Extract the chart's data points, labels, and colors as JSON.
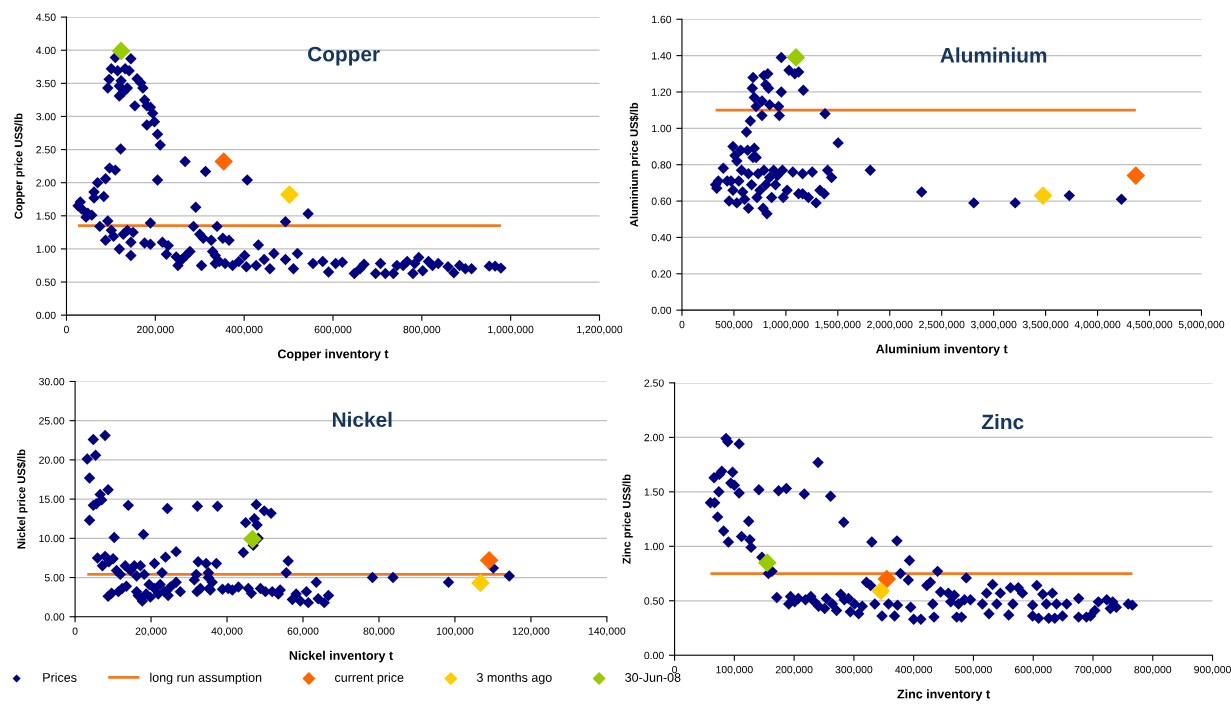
{
  "chart_data": [
    {
      "type": "scatter",
      "title": "Copper",
      "xlabel": "Copper inventory t",
      "ylabel": "Copper price US$/lb",
      "marker": "diamond",
      "grid": "y",
      "legend": false,
      "xlim": [
        0,
        1200000
      ],
      "xticks": [
        0,
        {
          "value": 200000,
          "label": "200,000"
        },
        {
          "value": 400000,
          "label": "400,000"
        },
        {
          "value": 600000,
          "label": "600,000"
        },
        {
          "value": 800000,
          "label": "800,000"
        },
        {
          "value": 1000000,
          "label": "1,000,000"
        },
        {
          "value": 1200000,
          "label": "1,200,000"
        }
      ],
      "ylim": [
        0,
        4.5
      ],
      "yticks": [
        {
          "value": 0,
          "label": "0.00"
        },
        {
          "value": 0.5,
          "label": "0.50"
        },
        {
          "value": 1,
          "label": "1.00"
        },
        {
          "value": 1.5,
          "label": "1.50"
        },
        {
          "value": 2,
          "label": "2.00"
        },
        {
          "value": 2.5,
          "label": "2.50"
        },
        {
          "value": 3,
          "label": "3.00"
        },
        {
          "value": 3.5,
          "label": "3.50"
        },
        {
          "value": 4,
          "label": "4.00"
        },
        {
          "value": 4.5,
          "label": "4.50"
        }
      ],
      "series": [
        {
          "color": "#000080",
          "x": [
            26000,
            31000,
            35000,
            44000,
            48000,
            57000,
            62000,
            62000,
            70000,
            84000,
            88000,
            97000,
            110000,
            93000,
            96000,
            101000,
            110000,
            115000,
            119000,
            123000,
            119000,
            128000,
            132000,
            141000,
            137000,
            145000,
            154000,
            159000,
            167000,
            172000,
            176000,
            181000,
            189000,
            194000,
            198000,
            181000,
            205000,
            211000,
            205000,
            122000,
            75000,
            93000,
            101000,
            88000,
            106000,
            119000,
            128000,
            137000,
            145000,
            150000,
            145000,
            176000,
            189000,
            189000,
            216000,
            229000,
            225000,
            247000,
            251000,
            260000,
            269000,
            278000,
            267000,
            286000,
            291000,
            300000,
            304000,
            308000,
            313000,
            326000,
            329000,
            335000,
            339000,
            335000,
            344000,
            352000,
            366000,
            357000,
            374000,
            388000,
            401000,
            405000,
            407000,
            427000,
            432000,
            445000,
            458000,
            467000,
            493000,
            493000,
            511000,
            520000,
            544000,
            555000,
            577000,
            590000,
            606000,
            621000,
            648000,
            661000,
            670000,
            696000,
            707000,
            718000,
            736000,
            744000,
            758000,
            767000,
            780000,
            784000,
            793000,
            802000,
            815000,
            824000,
            837000,
            859000,
            872000,
            885000,
            898000,
            912000,
            952000,
            965000,
            978000
          ],
          "values": [
            1.65,
            1.71,
            1.6,
            1.48,
            1.54,
            1.51,
            1.86,
            1.77,
            2.0,
            1.79,
            2.06,
            2.22,
            2.19,
            3.43,
            3.56,
            3.72,
            3.89,
            3.69,
            3.46,
            3.54,
            3.31,
            3.37,
            3.72,
            3.69,
            3.43,
            3.87,
            3.16,
            3.57,
            3.51,
            3.43,
            3.25,
            3.16,
            3.14,
            3.05,
            2.92,
            2.87,
            2.73,
            2.57,
            2.04,
            2.51,
            1.34,
            1.42,
            1.28,
            1.13,
            1.19,
            1.0,
            1.22,
            1.28,
            1.1,
            1.25,
            0.9,
            1.09,
            1.07,
            1.39,
            1.1,
            1.05,
            0.92,
            0.88,
            0.75,
            0.84,
            0.9,
            0.96,
            2.32,
            1.34,
            1.63,
            1.22,
            0.75,
            1.16,
            2.17,
            1.13,
            0.96,
            0.9,
            1.34,
            0.78,
            0.81,
            1.16,
            1.13,
            0.78,
            0.75,
            0.81,
            0.9,
            0.73,
            2.04,
            0.75,
            1.06,
            0.84,
            0.7,
            0.93,
            0.84,
            1.41,
            0.7,
            0.93,
            1.53,
            0.78,
            0.81,
            0.65,
            0.78,
            0.8,
            0.63,
            0.7,
            0.77,
            0.63,
            0.78,
            0.63,
            0.63,
            0.75,
            0.75,
            0.81,
            0.63,
            0.78,
            0.87,
            0.67,
            0.81,
            0.75,
            0.78,
            0.73,
            0.64,
            0.75,
            0.7,
            0.7,
            0.74,
            0.74,
            0.71
          ]
        },
        {
          "type": "line",
          "marker": "none",
          "line_style": "solid",
          "color": "#f47a20",
          "x": [
            26000,
            978000
          ],
          "values": [
            1.35,
            1.35
          ]
        },
        {
          "color": "#ff6600",
          "x": [
            354000
          ],
          "values": [
            2.32
          ]
        },
        {
          "color": "#ffcc00",
          "x": [
            502000
          ],
          "values": [
            1.82
          ]
        },
        {
          "color": "#99cc00",
          "x": [
            123000
          ],
          "values": [
            3.99
          ]
        }
      ]
    },
    {
      "type": "scatter",
      "title": "Aluminium",
      "xlabel": "Aluminium inventory t",
      "ylabel": "Aluminium price US$/lb",
      "marker": "diamond",
      "grid": "y",
      "legend": false,
      "xlim": [
        0,
        5000000
      ],
      "xticks": [
        0,
        {
          "value": 500000,
          "label": "500,000"
        },
        {
          "value": 1000000,
          "label": "1,000,000"
        },
        {
          "value": 1500000,
          "label": "1,500,000"
        },
        {
          "value": 2000000,
          "label": "2,000,000"
        },
        {
          "value": 2500000,
          "label": "2,500,000"
        },
        {
          "value": 3000000,
          "label": "3,000,000"
        },
        {
          "value": 3500000,
          "label": "3,500,000"
        },
        {
          "value": 4000000,
          "label": "4,000,000"
        },
        {
          "value": 4500000,
          "label": "4,500,000"
        },
        {
          "value": 5000000,
          "label": "5,000,000"
        }
      ],
      "ylim": [
        0,
        1.6
      ],
      "yticks": [
        {
          "value": 0,
          "label": "0.00"
        },
        {
          "value": 0.2,
          "label": "0.20"
        },
        {
          "value": 0.4,
          "label": "0.40"
        },
        {
          "value": 0.6,
          "label": "0.60"
        },
        {
          "value": 0.8,
          "label": "0.80"
        },
        {
          "value": 1,
          "label": "1.00"
        },
        {
          "value": 1.2,
          "label": "1.20"
        },
        {
          "value": 1.4,
          "label": "1.40"
        },
        {
          "value": 1.6,
          "label": "1.60"
        }
      ],
      "series": [
        {
          "color": "#000080",
          "x": [
            324000,
            335000,
            350000,
            398000,
            435000,
            472000,
            454000,
            491000,
            510000,
            528000,
            491000,
            528000,
            547000,
            565000,
            573000,
            584000,
            603000,
            621000,
            632000,
            640000,
            658000,
            640000,
            670000,
            684000,
            696000,
            714000,
            677000,
            684000,
            696000,
            714000,
            722000,
            733000,
            751000,
            770000,
            770000,
            781000,
            789000,
            789000,
            807000,
            807000,
            818000,
            826000,
            833000,
            844000,
            844000,
            863000,
            882000,
            900000,
            919000,
            930000,
            937000,
            956000,
            956000,
            967000,
            975000,
            1012000,
            1030000,
            1067000,
            1086000,
            1123000,
            1123000,
            1161000,
            1168000,
            1161000,
            1217000,
            1254000,
            1291000,
            1328000,
            1369000,
            1377000,
            1402000,
            1440000,
            1503000,
            1812000,
            2307000,
            2809000,
            3207000,
            3728000,
            4230000
          ],
          "values": [
            0.69,
            0.67,
            0.71,
            0.78,
            0.71,
            0.71,
            0.6,
            0.9,
            0.85,
            0.82,
            0.66,
            0.59,
            0.71,
            0.88,
            0.77,
            0.65,
            0.61,
            0.98,
            0.88,
            0.75,
            1.04,
            0.56,
            0.69,
            0.84,
            0.89,
            0.84,
            1.22,
            1.28,
            1.17,
            1.12,
            0.62,
            0.75,
            0.66,
            1.15,
            1.07,
            0.56,
            1.29,
            0.77,
            1.24,
            0.69,
            0.53,
            1.3,
            1.22,
            1.13,
            0.73,
            0.62,
            0.77,
            0.69,
            0.74,
            1.12,
            1.07,
            1.39,
            1.2,
            0.77,
            0.62,
            0.66,
            1.32,
            0.76,
            1.3,
            1.31,
            0.64,
            0.64,
            1.21,
            0.75,
            0.62,
            0.76,
            0.59,
            0.66,
            0.64,
            1.08,
            0.77,
            0.73,
            0.92,
            0.77,
            0.65,
            0.59,
            0.59,
            0.63,
            0.61
          ]
        },
        {
          "type": "line",
          "marker": "none",
          "line_style": "solid",
          "color": "#f47a20",
          "x": [
            324000,
            4368000
          ],
          "values": [
            1.1,
            1.1
          ]
        },
        {
          "color": "#ff6600",
          "x": [
            4368000
          ],
          "values": [
            0.74
          ]
        },
        {
          "color": "#ffcc00",
          "x": [
            3475000
          ],
          "values": [
            0.63
          ]
        },
        {
          "color": "#99cc00",
          "x": [
            1097000
          ],
          "values": [
            1.39
          ]
        }
      ]
    },
    {
      "type": "scatter",
      "title": "Nickel",
      "xlabel": "Nickel inventory t",
      "ylabel": "Nickel price US$/lb",
      "marker": "diamond",
      "grid": "y",
      "legend": "bottom",
      "xlim": [
        0,
        140000
      ],
      "xticks": [
        0,
        {
          "value": 20000,
          "label": "20,000"
        },
        {
          "value": 40000,
          "label": "40,000"
        },
        {
          "value": 60000,
          "label": "60,000"
        },
        {
          "value": 80000,
          "label": "80,000"
        },
        {
          "value": 100000,
          "label": "100,000"
        },
        {
          "value": 120000,
          "label": "120,000"
        },
        {
          "value": 140000,
          "label": "140,000"
        }
      ],
      "ylim": [
        0,
        30
      ],
      "yticks": [
        {
          "value": 0,
          "label": "0.00"
        },
        {
          "value": 5,
          "label": "5.00"
        },
        {
          "value": 10,
          "label": "10.00"
        },
        {
          "value": 15,
          "label": "15.00"
        },
        {
          "value": 20,
          "label": "20.00"
        },
        {
          "value": 25,
          "label": "25.00"
        },
        {
          "value": 30,
          "label": "30.00"
        }
      ],
      "series": [
        {
          "name": "Prices",
          "color": "#000080",
          "x": [
            3200,
            3800,
            3800,
            4800,
            5400,
            4800,
            5600,
            6600,
            7000,
            7900,
            8700,
            5900,
            7200,
            7900,
            8900,
            10000,
            8700,
            9600,
            10300,
            10900,
            11400,
            11900,
            12400,
            13500,
            14000,
            13200,
            14600,
            15600,
            16200,
            16200,
            16600,
            17200,
            17700,
            18000,
            18200,
            18700,
            19500,
            19800,
            20900,
            20900,
            21900,
            22400,
            22900,
            23500,
            23800,
            24300,
            24500,
            25100,
            26600,
            26600,
            27700,
            31400,
            31900,
            32100,
            32200,
            32400,
            33000,
            34500,
            35100,
            35100,
            35300,
            35600,
            36100,
            37200,
            37500,
            38800,
            40300,
            41400,
            43000,
            44300,
            44900,
            45600,
            46400,
            47200,
            47700,
            47900,
            48200,
            46900,
            48800,
            49800,
            50100,
            51600,
            51900,
            53500,
            54000,
            55600,
            56100,
            57200,
            58200,
            59300,
            60900,
            61400,
            63500,
            64000,
            65600,
            66700,
            78300,
            83700,
            98300,
            110100,
            114300
          ],
          "values": [
            20.1,
            17.7,
            12.3,
            22.6,
            20.6,
            14.2,
            14.4,
            15.6,
            14.9,
            23.1,
            16.2,
            7.5,
            6.5,
            7.7,
            7.0,
            7.4,
            2.6,
            3.0,
            10.1,
            5.9,
            3.2,
            5.4,
            3.6,
            3.9,
            14.2,
            6.5,
            5.9,
            6.5,
            5.2,
            3.2,
            2.7,
            6.5,
            2.0,
            10.5,
            5.4,
            2.9,
            4.1,
            2.5,
            6.8,
            3.6,
            2.9,
            4.1,
            5.6,
            3.2,
            7.6,
            13.8,
            2.7,
            3.8,
            8.3,
            4.4,
            3.2,
            4.7,
            5.4,
            3.2,
            14.1,
            7.0,
            3.6,
            6.8,
            5.0,
            5.6,
            3.6,
            3.4,
            4.4,
            6.8,
            14.1,
            3.5,
            3.6,
            3.4,
            3.8,
            8.2,
            12.0,
            3.6,
            3.0,
            12.5,
            14.3,
            11.7,
            10.0,
            9.1,
            3.6,
            13.5,
            3.2,
            13.2,
            3.2,
            2.9,
            3.4,
            5.6,
            7.1,
            2.2,
            2.9,
            2.0,
            3.2,
            1.8,
            4.4,
            2.3,
            1.8,
            2.7,
            5.0,
            5.0,
            4.4,
            6.2,
            5.2
          ]
        },
        {
          "name": "long run assumption",
          "type": "line",
          "marker": "none",
          "line_style": "solid",
          "color": "#f47a20",
          "x": [
            3200,
            113600
          ],
          "values": [
            5.4,
            5.4
          ]
        },
        {
          "name": "current price",
          "color": "#ff6600",
          "x": [
            109000
          ],
          "values": [
            7.2
          ]
        },
        {
          "name": "3 months ago",
          "color": "#ffcc00",
          "x": [
            106700
          ],
          "values": [
            4.3
          ]
        },
        {
          "name": "30-Jun-08",
          "color": "#99cc00",
          "x": [
            46700
          ],
          "values": [
            9.9
          ]
        }
      ]
    },
    {
      "type": "scatter",
      "title": "Zinc",
      "xlabel": "Zinc inventory t",
      "ylabel": "Zinc price US$/lb",
      "marker": "diamond",
      "grid": "y",
      "legend": false,
      "xlim": [
        0,
        900000
      ],
      "xticks": [
        0,
        {
          "value": 100000,
          "label": "100,000"
        },
        {
          "value": 200000,
          "label": "200,000"
        },
        {
          "value": 300000,
          "label": "300,000"
        },
        {
          "value": 400000,
          "label": "400,000"
        },
        {
          "value": 500000,
          "label": "500,000"
        },
        {
          "value": 600000,
          "label": "600,000"
        },
        {
          "value": 700000,
          "label": "700,000"
        },
        {
          "value": 800000,
          "label": "800,000"
        },
        {
          "value": 900000,
          "label": "900,000"
        }
      ],
      "ylim": [
        0,
        2.5
      ],
      "yticks": [
        {
          "value": 0,
          "label": "0.00"
        },
        {
          "value": 0.5,
          "label": "0.50"
        },
        {
          "value": 1,
          "label": "1.00"
        },
        {
          "value": 1.5,
          "label": "1.50"
        },
        {
          "value": 2,
          "label": "2.00"
        },
        {
          "value": 2.5,
          "label": "2.50"
        }
      ],
      "series": [
        {
          "color": "#000080",
          "x": [
            60000,
            67000,
            66000,
            72000,
            74000,
            75000,
            79000,
            82000,
            86000,
            89000,
            90000,
            94000,
            97000,
            100000,
            108000,
            108000,
            112000,
            124000,
            126000,
            128000,
            141000,
            146000,
            157000,
            163000,
            171000,
            174000,
            187000,
            191000,
            194000,
            201000,
            207000,
            217000,
            219000,
            228000,
            234000,
            240000,
            241000,
            251000,
            254000,
            261000,
            264000,
            271000,
            278000,
            283000,
            284000,
            291000,
            294000,
            301000,
            308000,
            314000,
            321000,
            330000,
            328000,
            335000,
            347000,
            358000,
            368000,
            373000,
            372000,
            378000,
            391000,
            393000,
            395000,
            400000,
            412000,
            422000,
            428000,
            432000,
            434000,
            440000,
            445000,
            458000,
            462000,
            468000,
            472000,
            475000,
            480000,
            485000,
            488000,
            495000,
            515000,
            522000,
            526000,
            532000,
            539000,
            545000,
            559000,
            562000,
            566000,
            575000,
            582000,
            599000,
            599000,
            606000,
            609000,
            616000,
            622000,
            626000,
            632000,
            636000,
            639000,
            649000,
            656000,
            676000,
            676000,
            689000,
            696000,
            703000,
            709000,
            723000,
            729000,
            733000,
            739000,
            759000,
            766000
          ],
          "values": [
            1.4,
            1.4,
            1.63,
            1.27,
            1.5,
            1.66,
            1.69,
            1.14,
            1.99,
            1.96,
            1.04,
            1.58,
            1.68,
            1.56,
            1.94,
            1.49,
            1.09,
            1.23,
            1.06,
            0.99,
            1.52,
            0.9,
            0.75,
            0.77,
            0.53,
            1.51,
            1.53,
            0.47,
            0.54,
            0.49,
            0.52,
            1.48,
            0.51,
            0.54,
            0.49,
            1.77,
            0.45,
            0.43,
            0.52,
            1.46,
            0.47,
            0.41,
            0.56,
            1.22,
            0.51,
            0.52,
            0.4,
            0.47,
            0.38,
            0.45,
            0.67,
            1.04,
            0.64,
            0.47,
            0.36,
            0.47,
            0.36,
            0.46,
            1.05,
            0.75,
            0.69,
            0.87,
            0.44,
            0.33,
            0.33,
            0.64,
            0.67,
            0.47,
            0.35,
            0.77,
            0.58,
            0.57,
            0.49,
            0.55,
            0.35,
            0.47,
            0.35,
            0.51,
            0.71,
            0.51,
            0.47,
            0.57,
            0.38,
            0.65,
            0.47,
            0.57,
            0.37,
            0.62,
            0.47,
            0.62,
            0.57,
            0.46,
            0.36,
            0.64,
            0.34,
            0.56,
            0.47,
            0.34,
            0.57,
            0.34,
            0.47,
            0.36,
            0.47,
            0.52,
            0.35,
            0.35,
            0.36,
            0.41,
            0.49,
            0.51,
            0.43,
            0.49,
            0.44,
            0.47,
            0.46
          ]
        },
        {
          "type": "line",
          "marker": "none",
          "line_style": "solid",
          "color": "#f47a20",
          "x": [
            60000,
            766000
          ],
          "values": [
            0.75,
            0.75
          ]
        },
        {
          "color": "#ff6600",
          "x": [
            355000
          ],
          "values": [
            0.7
          ]
        },
        {
          "color": "#ffcc00",
          "x": [
            345000
          ],
          "values": [
            0.59
          ]
        },
        {
          "color": "#99cc00",
          "x": [
            155000
          ],
          "values": [
            0.85
          ]
        }
      ]
    }
  ]
}
